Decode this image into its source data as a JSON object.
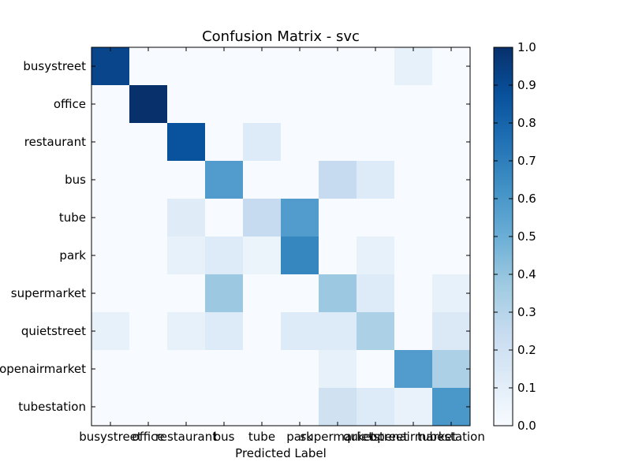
{
  "chart_data": {
    "type": "heatmap",
    "title": "Confusion Matrix - svc",
    "xlabel": "Predicted Label",
    "ylabel": "",
    "categories": [
      "busystreet",
      "office",
      "restaurant",
      "bus",
      "tube",
      "park",
      "supermarket",
      "quietstreet",
      "openairmarket",
      "tubestation"
    ],
    "matrix": [
      [
        0.92,
        0.0,
        0.0,
        0.0,
        0.0,
        0.0,
        0.0,
        0.0,
        0.08,
        0.0
      ],
      [
        0.0,
        1.0,
        0.0,
        0.0,
        0.0,
        0.0,
        0.0,
        0.0,
        0.0,
        0.0
      ],
      [
        0.0,
        0.0,
        0.87,
        0.0,
        0.13,
        0.0,
        0.0,
        0.0,
        0.0,
        0.0
      ],
      [
        0.0,
        0.0,
        0.0,
        0.58,
        0.0,
        0.0,
        0.25,
        0.13,
        0.0,
        0.0
      ],
      [
        0.0,
        0.0,
        0.12,
        0.0,
        0.25,
        0.58,
        0.0,
        0.0,
        0.0,
        0.0
      ],
      [
        0.0,
        0.0,
        0.08,
        0.13,
        0.06,
        0.67,
        0.0,
        0.08,
        0.0,
        0.0
      ],
      [
        0.0,
        0.0,
        0.0,
        0.38,
        0.0,
        0.0,
        0.38,
        0.13,
        0.0,
        0.08
      ],
      [
        0.08,
        0.0,
        0.08,
        0.13,
        0.0,
        0.13,
        0.13,
        0.33,
        0.0,
        0.14
      ],
      [
        0.0,
        0.0,
        0.0,
        0.0,
        0.0,
        0.0,
        0.08,
        0.0,
        0.58,
        0.33
      ],
      [
        0.0,
        0.0,
        0.0,
        0.0,
        0.0,
        0.0,
        0.2,
        0.13,
        0.07,
        0.6
      ]
    ],
    "colorbar": {
      "range": [
        0,
        1
      ],
      "ticks": [
        "0.0",
        "0.1",
        "0.2",
        "0.3",
        "0.4",
        "0.5",
        "0.6",
        "0.7",
        "0.8",
        "0.9",
        "1.0"
      ],
      "colormap": "Blues"
    }
  }
}
